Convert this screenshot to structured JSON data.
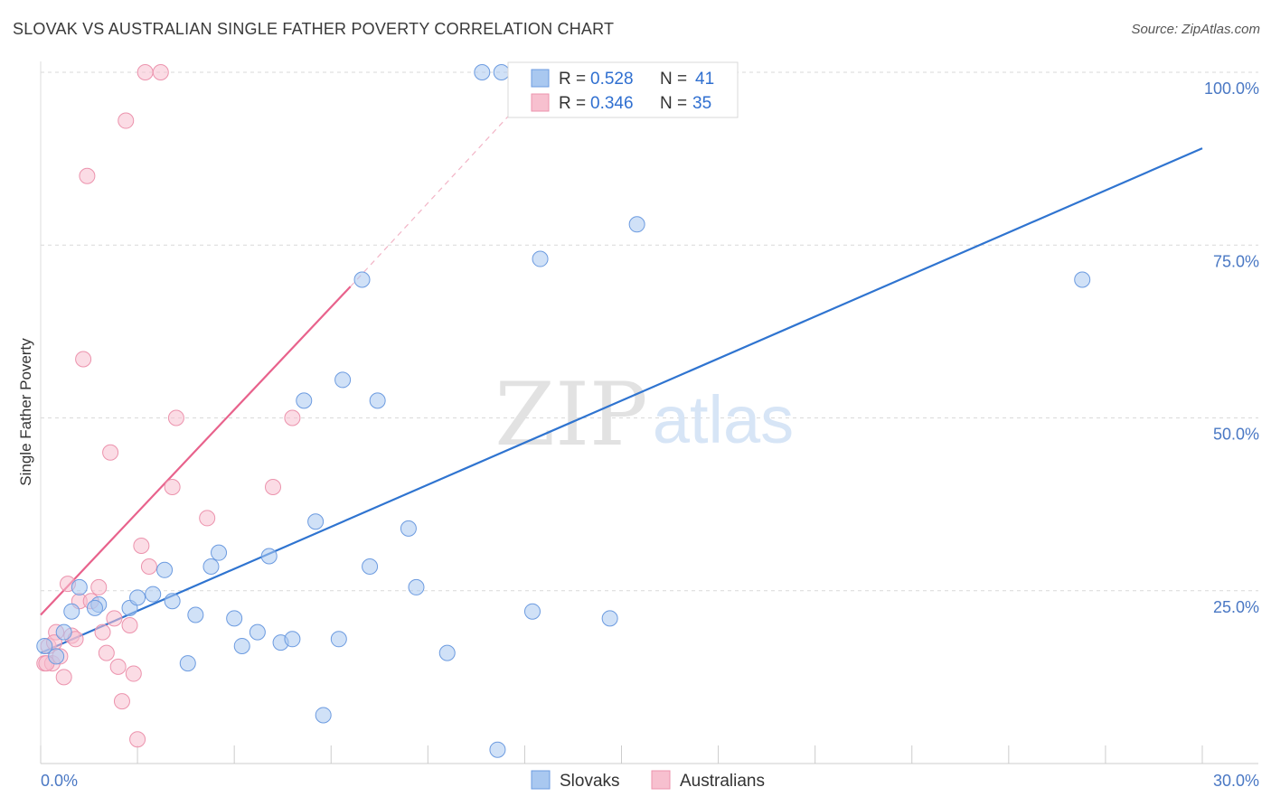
{
  "title": "SLOVAK VS AUSTRALIAN SINGLE FATHER POVERTY CORRELATION CHART",
  "source": "Source: ZipAtlas.com",
  "watermark": {
    "zip": "ZIP",
    "atlas": "atlas"
  },
  "colors": {
    "blue_fill": "#a9c8f0",
    "blue_stroke": "#6c9be0",
    "blue_line": "#2f74d0",
    "pink_fill": "#f7c0cf",
    "pink_stroke": "#ec93ad",
    "pink_line": "#e8628c",
    "tick_text": "#4a78c4",
    "grid": "#d9d9d9"
  },
  "legend": {
    "rows": [
      {
        "series": "Slovaks",
        "r_label": "R =",
        "r_value": "0.528",
        "n_label": "N =",
        "n_value": "41"
      },
      {
        "series": "Australians",
        "r_label": "R =",
        "r_value": "0.346",
        "n_label": "N =",
        "n_value": "35"
      }
    ]
  },
  "chart_data": {
    "type": "scatter",
    "title": "SLOVAK VS AUSTRALIAN SINGLE FATHER POVERTY CORRELATION CHART",
    "xlabel": "",
    "ylabel": "Single Father Poverty",
    "xlim": [
      0,
      30
    ],
    "ylim": [
      0,
      100
    ],
    "x_tick_labels": [
      "0.0%",
      "30.0%"
    ],
    "y_ticks": [
      25,
      50,
      75,
      100
    ],
    "y_tick_labels": [
      "25.0%",
      "50.0%",
      "75.0%",
      "100.0%"
    ],
    "grid": true,
    "series": [
      {
        "name": "Slovaks",
        "color": "#a9c8f0",
        "trendline": {
          "x": [
            0,
            30
          ],
          "y": [
            16.0,
            89.0
          ],
          "style": "solid"
        },
        "points": [
          [
            0.1,
            17
          ],
          [
            0.4,
            15.5
          ],
          [
            0.6,
            19
          ],
          [
            0.8,
            22
          ],
          [
            1.0,
            25.5
          ],
          [
            1.5,
            23
          ],
          [
            1.4,
            22.5
          ],
          [
            2.3,
            22.5
          ],
          [
            2.5,
            24
          ],
          [
            2.9,
            24.5
          ],
          [
            3.2,
            28
          ],
          [
            3.4,
            23.5
          ],
          [
            3.8,
            14.5
          ],
          [
            4.0,
            21.5
          ],
          [
            4.4,
            28.5
          ],
          [
            4.6,
            30.5
          ],
          [
            5.0,
            21
          ],
          [
            5.2,
            17
          ],
          [
            5.6,
            19
          ],
          [
            5.9,
            30
          ],
          [
            6.2,
            17.5
          ],
          [
            6.5,
            18
          ],
          [
            6.8,
            52.5
          ],
          [
            7.1,
            35
          ],
          [
            7.3,
            7
          ],
          [
            7.7,
            18
          ],
          [
            7.8,
            55.5
          ],
          [
            8.3,
            70
          ],
          [
            8.5,
            28.5
          ],
          [
            8.7,
            52.5
          ],
          [
            9.5,
            34
          ],
          [
            9.7,
            25.5
          ],
          [
            10.5,
            16
          ],
          [
            11.4,
            100
          ],
          [
            11.8,
            2
          ],
          [
            11.9,
            100
          ],
          [
            12.7,
            22
          ],
          [
            12.9,
            73
          ],
          [
            14.7,
            21
          ],
          [
            15.4,
            78
          ],
          [
            26.9,
            70
          ]
        ]
      },
      {
        "name": "Australians",
        "color": "#f7c0cf",
        "trendline": {
          "x": [
            0,
            8.0
          ],
          "y": [
            21.5,
            69.0
          ],
          "dashed_ext": {
            "x": [
              8.0,
              12.3
            ],
            "y": [
              69.0,
              95
            ]
          }
        },
        "points": [
          [
            0.1,
            14.5
          ],
          [
            0.2,
            17
          ],
          [
            0.3,
            14.5
          ],
          [
            0.4,
            19
          ],
          [
            0.5,
            15.5
          ],
          [
            0.6,
            12.5
          ],
          [
            0.7,
            26
          ],
          [
            0.8,
            18.5
          ],
          [
            0.9,
            18
          ],
          [
            1.0,
            23.5
          ],
          [
            1.1,
            58.5
          ],
          [
            1.2,
            85
          ],
          [
            1.3,
            23.5
          ],
          [
            1.5,
            25.5
          ],
          [
            1.6,
            19
          ],
          [
            1.7,
            16
          ],
          [
            1.8,
            45
          ],
          [
            1.9,
            21
          ],
          [
            2.0,
            14
          ],
          [
            2.1,
            9
          ],
          [
            2.2,
            93
          ],
          [
            2.3,
            20
          ],
          [
            2.4,
            13
          ],
          [
            2.5,
            3.5
          ],
          [
            2.6,
            31.5
          ],
          [
            2.7,
            100
          ],
          [
            2.8,
            28.5
          ],
          [
            3.1,
            100
          ],
          [
            3.4,
            40
          ],
          [
            3.5,
            50
          ],
          [
            4.3,
            35.5
          ],
          [
            6.0,
            40
          ],
          [
            6.5,
            50
          ],
          [
            0.15,
            14.5
          ],
          [
            0.35,
            17.5
          ]
        ]
      }
    ]
  },
  "bottom_legend": [
    {
      "label": "Slovaks",
      "color": "#a9c8f0"
    },
    {
      "label": "Australians",
      "color": "#f7c0cf"
    }
  ]
}
